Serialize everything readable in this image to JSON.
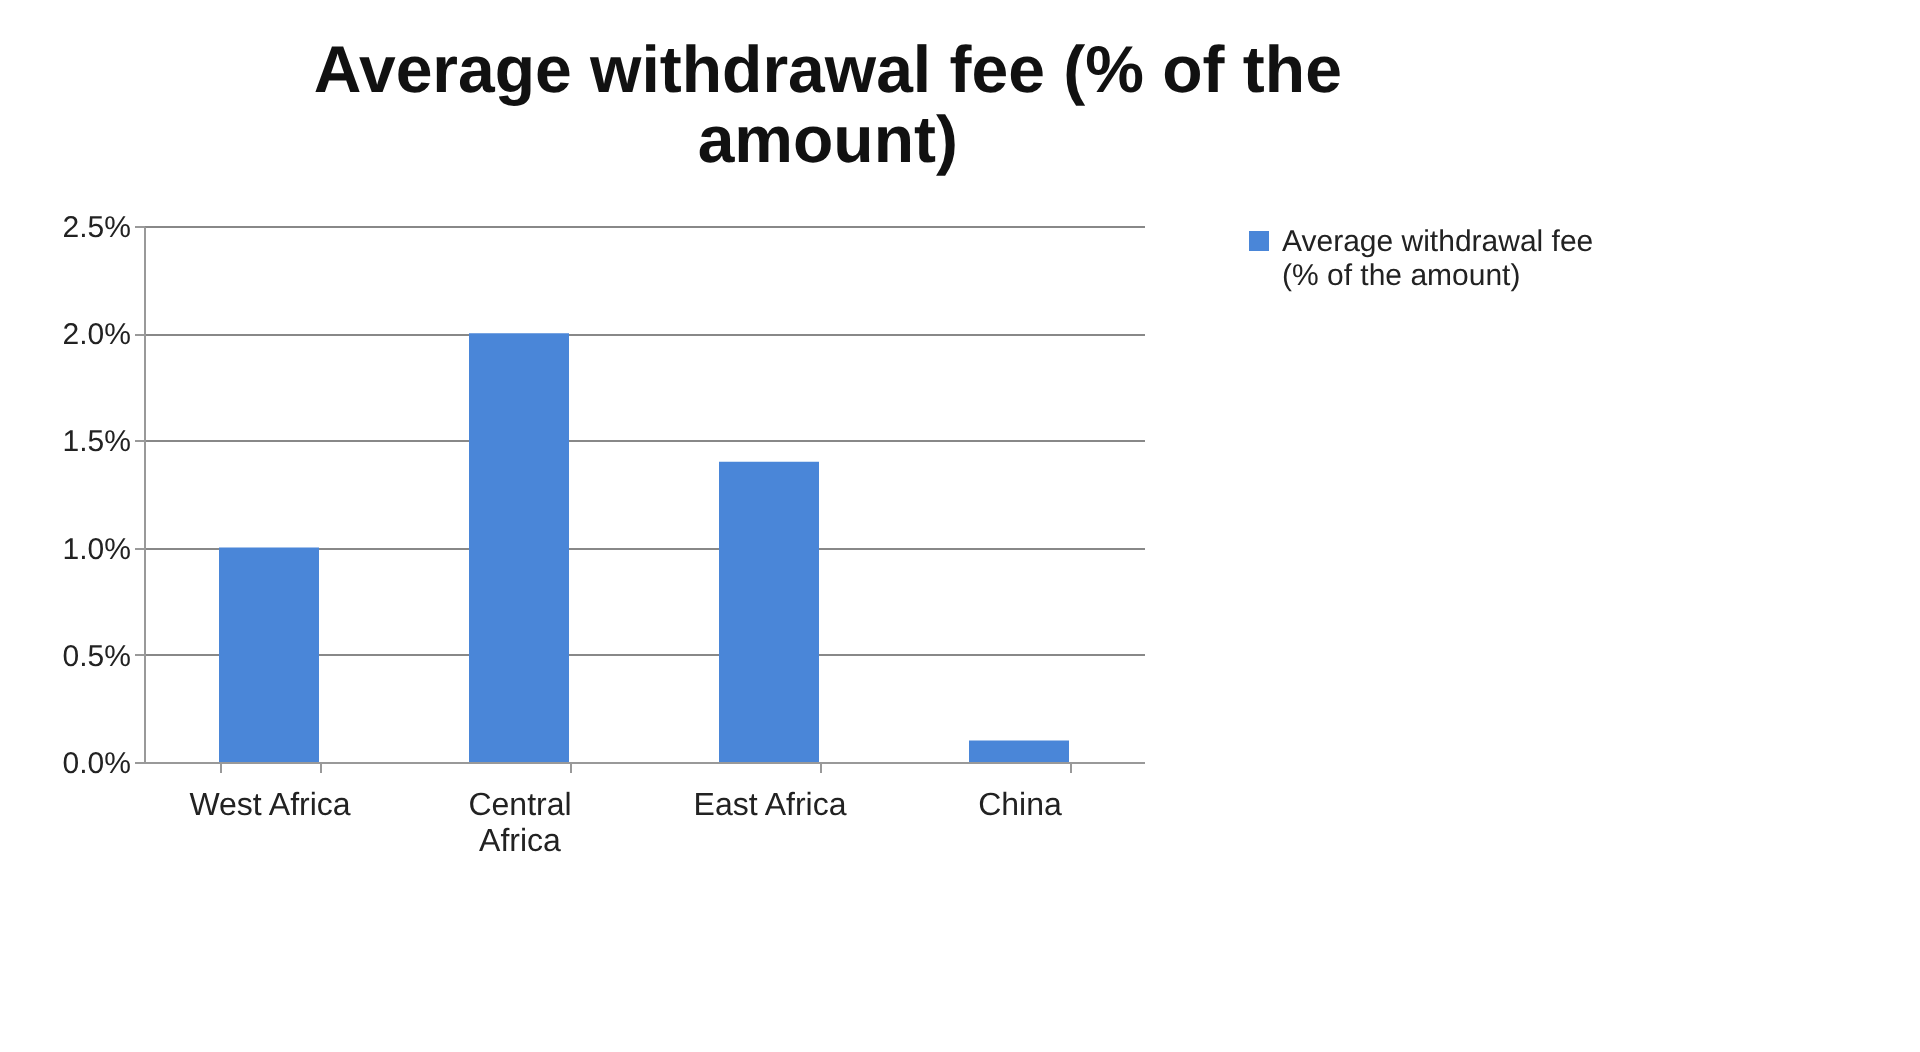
{
  "chart_data": {
    "type": "bar",
    "title": "Average withdrawal fee (% of the amount)",
    "categories": [
      "West Africa",
      "Central Africa",
      "East Africa",
      "China"
    ],
    "series": [
      {
        "name": "Average withdrawal fee (% of the amount)",
        "color": "#4a86d8",
        "values": [
          1.0,
          2.0,
          1.4,
          0.1
        ]
      }
    ],
    "ylim": [
      0,
      2.5
    ],
    "yticks": [
      {
        "value": 0,
        "label": "0.0%"
      },
      {
        "value": 0.5,
        "label": "0.5%"
      },
      {
        "value": 1,
        "label": "1.0%"
      },
      {
        "value": 1.5,
        "label": "1.5%"
      },
      {
        "value": 2,
        "label": "2.0%"
      },
      {
        "value": 2.5,
        "label": "2.5%"
      }
    ],
    "grid": "y",
    "legend": "right"
  }
}
